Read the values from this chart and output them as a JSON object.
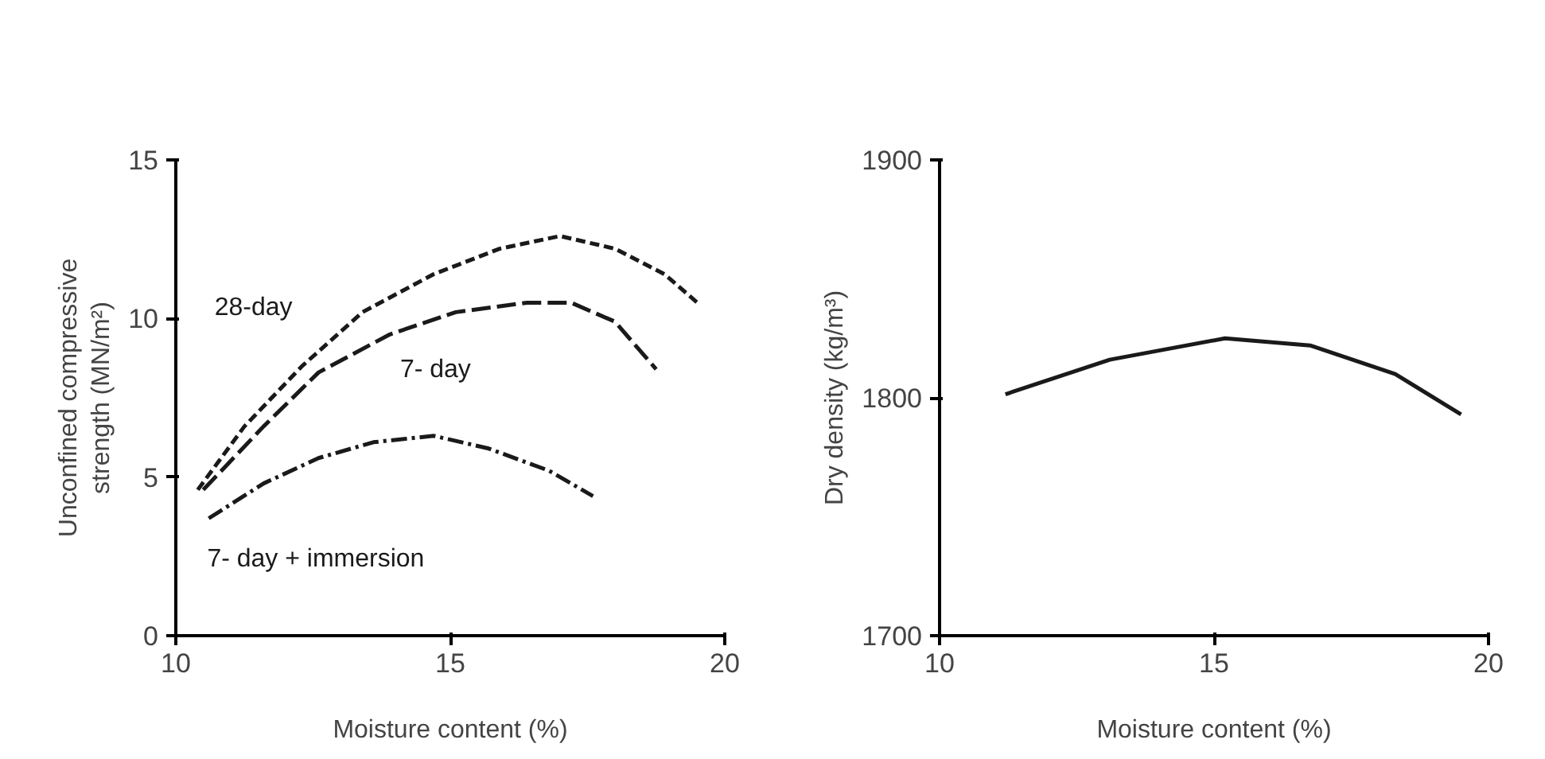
{
  "chart_data": [
    {
      "type": "line",
      "xlabel": "Moisture content (%)",
      "ylabel": "Unconfined compressive\nstrength (MN/m²)",
      "xlim": [
        10,
        20
      ],
      "ylim": [
        0,
        15
      ],
      "xticks": [
        10,
        15,
        20
      ],
      "yticks": [
        0,
        5,
        10,
        15
      ],
      "grid": false,
      "series": [
        {
          "name": "28-day",
          "color": "#1a1a1a",
          "line_style": "dashed",
          "x": [
            10.4,
            11.25,
            12.3,
            13.4,
            14.7,
            15.9,
            17.0,
            18.0,
            18.9,
            19.5
          ],
          "values": [
            4.6,
            6.6,
            8.5,
            10.2,
            11.4,
            12.2,
            12.6,
            12.2,
            11.4,
            10.5
          ]
        },
        {
          "name": "7- day",
          "color": "#1a1a1a",
          "line_style": "longdash",
          "x": [
            10.5,
            11.6,
            12.6,
            13.9,
            15.1,
            16.4,
            17.2,
            18.0,
            18.75
          ],
          "values": [
            4.6,
            6.6,
            8.3,
            9.5,
            10.2,
            10.5,
            10.5,
            9.9,
            8.4
          ]
        },
        {
          "name": "7- day + immersion",
          "color": "#1a1a1a",
          "line_style": "dashdot",
          "x": [
            10.6,
            11.6,
            12.6,
            13.6,
            14.7,
            15.7,
            16.8,
            17.6
          ],
          "values": [
            3.7,
            4.8,
            5.6,
            6.1,
            6.3,
            5.9,
            5.2,
            4.4
          ]
        }
      ]
    },
    {
      "type": "line",
      "xlabel": "Moisture content (%)",
      "ylabel": "Dry density (kg/m³)",
      "xlim": [
        10,
        20
      ],
      "ylim": [
        1700,
        1900
      ],
      "xticks": [
        10,
        15,
        20
      ],
      "yticks": [
        1700,
        1800,
        1900
      ],
      "grid": false,
      "series": [
        {
          "color": "#1a1a1a",
          "line_style": "solid",
          "x": [
            11.2,
            13.1,
            15.2,
            16.75,
            18.3,
            19.5
          ],
          "values": [
            1801.5,
            1816,
            1825,
            1822,
            1810,
            1793
          ]
        }
      ]
    }
  ]
}
